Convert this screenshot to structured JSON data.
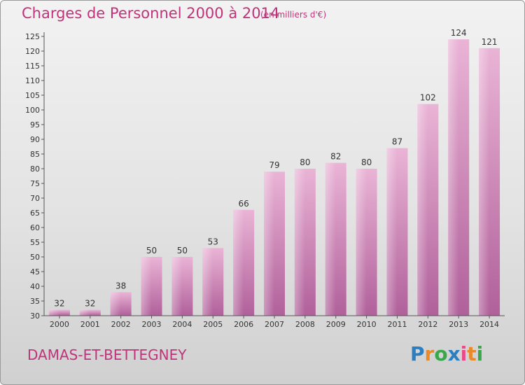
{
  "title": "Charges de Personnel 2000 à 2014",
  "subtitle": "(en milliers d'€)",
  "commune": "DAMAS-ET-BETTEGNEY",
  "logo": {
    "letters": [
      "P",
      "r",
      "o",
      "x",
      "i",
      "t",
      "i"
    ],
    "colors": [
      "#2b7fc0",
      "#e8892a",
      "#3aa84a",
      "#2b7fc0",
      "#e84a8a",
      "#e8892a",
      "#3aa84a"
    ]
  },
  "colors": {
    "accent": "#c0337a",
    "bar_light": "#eab4d6",
    "bar_dark": "#b0609a"
  },
  "chart_data": {
    "type": "bar",
    "categories": [
      "2000",
      "2001",
      "2002",
      "2003",
      "2004",
      "2005",
      "2006",
      "2007",
      "2008",
      "2009",
      "2010",
      "2011",
      "2012",
      "2013",
      "2014"
    ],
    "values": [
      32,
      32,
      38,
      50,
      50,
      53,
      66,
      79,
      80,
      82,
      80,
      87,
      102,
      124,
      121
    ],
    "title": "Charges de Personnel 2000 à 2014",
    "xlabel": "",
    "ylabel": "",
    "ylim": [
      30,
      125
    ],
    "yticks": [
      30,
      35,
      40,
      45,
      50,
      55,
      60,
      65,
      70,
      75,
      80,
      85,
      90,
      95,
      100,
      105,
      110,
      115,
      120,
      125
    ],
    "grid": false,
    "data_labels": true
  }
}
